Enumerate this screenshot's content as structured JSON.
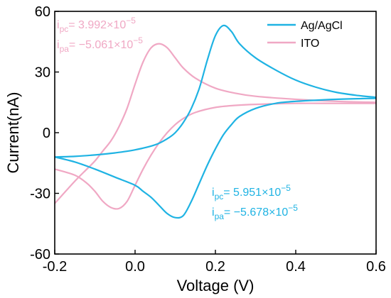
{
  "chart_data": {
    "type": "line",
    "xlabel": "Voltage (V)",
    "ylabel": "Current(nA)",
    "xlim": [
      -0.2,
      0.6
    ],
    "ylim": [
      -60,
      60
    ],
    "xticks": [
      -0.2,
      0.0,
      0.2,
      0.4,
      0.6
    ],
    "xtick_labels": [
      "-0.2",
      "0.0",
      "0.2",
      "0.4",
      "0.6"
    ],
    "yticks": [
      -60,
      -30,
      0,
      30,
      60
    ],
    "ytick_labels": [
      "-60",
      "-30",
      "0",
      "30",
      "60"
    ],
    "grid": false,
    "legend_position": "top-right",
    "series": [
      {
        "name": "Ag/AgCl",
        "color": "#1fb3e3",
        "forward": {
          "x": [
            -0.2,
            -0.15,
            -0.1,
            -0.05,
            0.0,
            0.05,
            0.08,
            0.1,
            0.12,
            0.14,
            0.16,
            0.18,
            0.2,
            0.22,
            0.24,
            0.26,
            0.3,
            0.35,
            0.4,
            0.45,
            0.5,
            0.55,
            0.6
          ],
          "y": [
            -12,
            -11.7,
            -11,
            -10,
            -8.5,
            -6,
            -3,
            0,
            5,
            12,
            22,
            36,
            48,
            53,
            50,
            44,
            37,
            31,
            26,
            22.5,
            20,
            18.5,
            17.5
          ]
        },
        "reverse": {
          "x": [
            0.6,
            0.5,
            0.4,
            0.35,
            0.3,
            0.26,
            0.24,
            0.22,
            0.2,
            0.18,
            0.16,
            0.14,
            0.12,
            0.1,
            0.08,
            0.06,
            0.04,
            0.02,
            0.0,
            -0.05,
            -0.1,
            -0.15,
            -0.2
          ],
          "y": [
            17,
            16.5,
            15.5,
            14.5,
            12,
            8,
            4,
            -1,
            -8,
            -16,
            -25,
            -34,
            -41,
            -42,
            -40,
            -36,
            -32,
            -29,
            -26,
            -22,
            -18,
            -14.5,
            -12
          ]
        }
      },
      {
        "name": "ITO",
        "color": "#f0a8c4",
        "forward": {
          "x": [
            -0.2,
            -0.15,
            -0.12,
            -0.1,
            -0.08,
            -0.06,
            -0.04,
            -0.02,
            0.0,
            0.02,
            0.04,
            0.06,
            0.08,
            0.1,
            0.12,
            0.15,
            0.2,
            0.25,
            0.3,
            0.4,
            0.5,
            0.6
          ],
          "y": [
            -35,
            -24,
            -18,
            -14,
            -9,
            -4,
            3,
            12,
            24,
            35,
            42,
            44,
            42,
            37,
            32,
            27,
            22,
            19.5,
            18,
            16.5,
            15.5,
            15
          ]
        },
        "reverse": {
          "x": [
            0.6,
            0.5,
            0.4,
            0.3,
            0.25,
            0.2,
            0.15,
            0.12,
            0.1,
            0.08,
            0.06,
            0.04,
            0.02,
            0.0,
            -0.02,
            -0.04,
            -0.06,
            -0.08,
            -0.1,
            -0.12,
            -0.15,
            -0.2
          ],
          "y": [
            14.5,
            14.5,
            14.5,
            14,
            13.5,
            12.5,
            10,
            7,
            4,
            0,
            -5,
            -11,
            -18,
            -26,
            -34,
            -37.5,
            -37,
            -34,
            -29,
            -25,
            -21,
            -18
          ]
        }
      }
    ],
    "annotations": [
      {
        "id": "ito-pc",
        "color": "#f0a8c4",
        "base": "i",
        "sub": "pc",
        "text": "= 3.992×10",
        "exp": "−5"
      },
      {
        "id": "ito-pa",
        "color": "#f0a8c4",
        "base": "i",
        "sub": "pa",
        "text": "= −5.061×10",
        "exp": "−5"
      },
      {
        "id": "agcl-pc",
        "color": "#1fb3e3",
        "base": "i",
        "sub": "pc",
        "text": "= 5.951×10",
        "exp": "−5"
      },
      {
        "id": "agcl-pa",
        "color": "#1fb3e3",
        "base": "i",
        "sub": "pa",
        "text": "= −5.678×10",
        "exp": "−5"
      }
    ]
  }
}
